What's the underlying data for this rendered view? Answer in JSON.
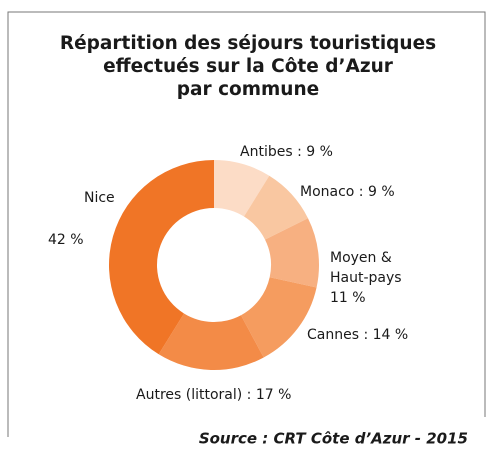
{
  "chart_data": {
    "type": "donut",
    "title": [
      "Répartition des séjours touristiques",
      "effectués sur la Côte d’Azur",
      "par commune"
    ],
    "values": [
      9,
      9,
      11,
      14,
      17,
      42
    ],
    "value_labels": [
      [
        "Antibes : 9 %"
      ],
      [
        "Monaco : 9 %"
      ],
      [
        "Moyen &",
        "Haut-pays",
        "11 %"
      ],
      [
        "Cannes : 14 %"
      ],
      [
        "Autres (littoral) : 17 %"
      ],
      [
        "Nice",
        "42 %"
      ]
    ],
    "colors": [
      "#fcdcc6",
      "#f9c7a1",
      "#f7b081",
      "#f59c5f",
      "#f38b47",
      "#f07526"
    ],
    "source": "Source : CRT Côte d’Azur - 2015"
  }
}
